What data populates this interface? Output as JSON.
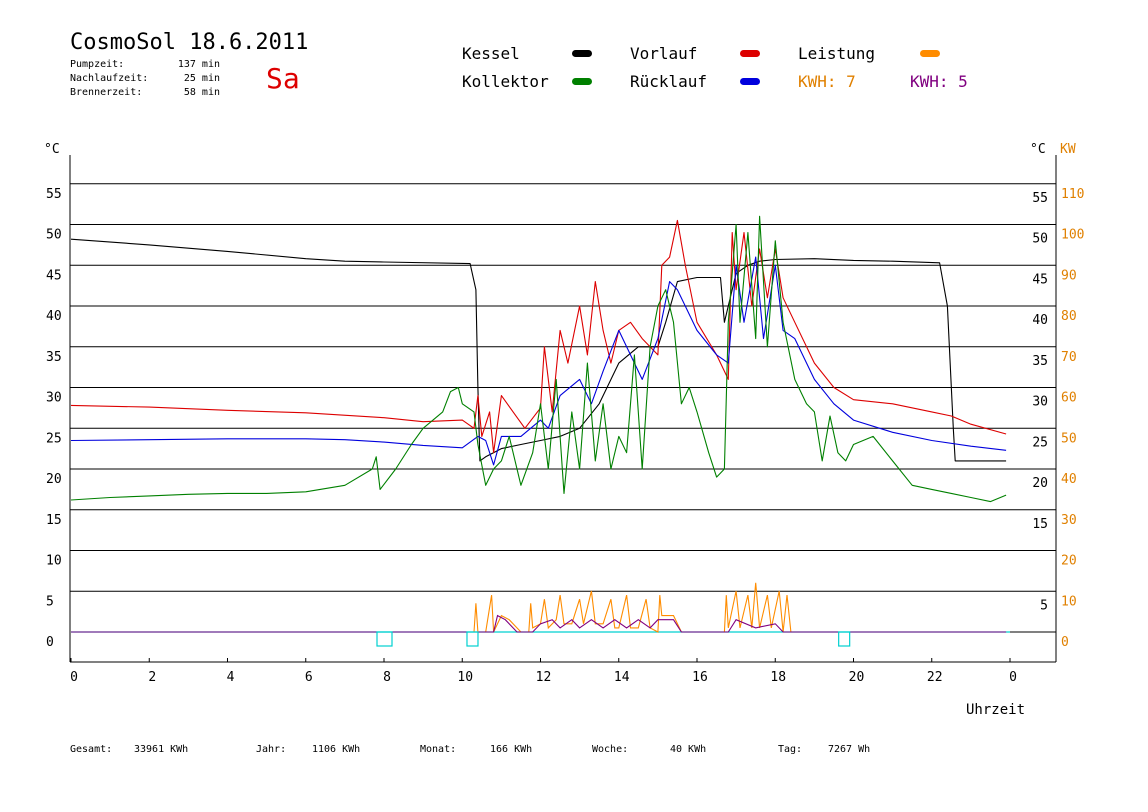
{
  "header": {
    "title": "CosmoSol 18.6.2011",
    "day": "Sa",
    "stats": [
      {
        "label": "Pumpzeit:",
        "value": "137 min"
      },
      {
        "label": "Nachlaufzeit:",
        "value": "25 min"
      },
      {
        "label": "Brennerzeit:",
        "value": "58 min"
      }
    ]
  },
  "legend": {
    "items": [
      {
        "label": "Kessel",
        "color": "#000000"
      },
      {
        "label": "Vorlauf",
        "color": "#dd0000"
      },
      {
        "label": "Leistung",
        "color": "#ff8c00"
      },
      {
        "label": "Kollektor",
        "color": "#008000"
      },
      {
        "label": "Rücklauf",
        "color": "#0000dd"
      }
    ],
    "kwh": [
      {
        "label": "KWH: 7",
        "color": "#e08000"
      },
      {
        "label": "KWH: 5",
        "color": "#800080"
      }
    ]
  },
  "footer": {
    "items": [
      {
        "label": "Gesamt:",
        "value": "33961 KWh"
      },
      {
        "label": "Jahr:",
        "value": "1106 KWh"
      },
      {
        "label": "Monat:",
        "value": "166 KWh"
      },
      {
        "label": "Woche:",
        "value": "40 KWh"
      },
      {
        "label": "Tag:",
        "value": "7267 Wh"
      }
    ]
  },
  "chart_data": {
    "type": "line",
    "xlabel": "Uhrzeit",
    "ylabel_left": "°C",
    "ylabel_right": [
      "°C",
      "KW"
    ],
    "x_ticks": [
      "0",
      "2",
      "4",
      "6",
      "8",
      "10",
      "12",
      "14",
      "16",
      "18",
      "20",
      "22",
      "0"
    ],
    "xlim": [
      0,
      24
    ],
    "ylim": [
      0,
      55
    ],
    "y_ticks_left": [
      0,
      5,
      10,
      15,
      20,
      25,
      30,
      35,
      40,
      45,
      50,
      55
    ],
    "y_ticks_right_c": [
      5,
      15,
      20,
      25,
      30,
      35,
      40,
      45,
      50,
      55
    ],
    "y_ticks_right_kw": [
      0,
      10,
      20,
      30,
      40,
      50,
      60,
      70,
      80,
      90,
      100,
      110
    ],
    "grid": true,
    "series": [
      {
        "name": "Kessel",
        "color": "#000000",
        "points": [
          [
            0,
            48.2
          ],
          [
            2,
            47.5
          ],
          [
            4,
            46.7
          ],
          [
            6,
            45.8
          ],
          [
            7,
            45.5
          ],
          [
            8,
            45.4
          ],
          [
            10.2,
            45.2
          ],
          [
            10.35,
            42
          ],
          [
            10.4,
            30
          ],
          [
            10.45,
            21
          ],
          [
            10.6,
            21.5
          ],
          [
            11,
            22.5
          ],
          [
            11.5,
            23
          ],
          [
            12,
            23.5
          ],
          [
            12.5,
            24
          ],
          [
            13,
            25
          ],
          [
            13.5,
            28
          ],
          [
            14,
            33
          ],
          [
            14.5,
            35
          ],
          [
            15,
            35
          ],
          [
            15.2,
            38
          ],
          [
            15.5,
            43
          ],
          [
            16,
            43.5
          ],
          [
            16.6,
            43.5
          ],
          [
            16.7,
            38
          ],
          [
            17,
            44
          ],
          [
            17.3,
            45
          ],
          [
            17.6,
            45.5
          ],
          [
            18,
            45.7
          ],
          [
            19,
            45.8
          ],
          [
            20,
            45.6
          ],
          [
            21,
            45.5
          ],
          [
            22.2,
            45.3
          ],
          [
            22.4,
            40
          ],
          [
            22.55,
            25
          ],
          [
            22.6,
            21
          ],
          [
            23.9,
            21
          ]
        ]
      },
      {
        "name": "Vorlauf",
        "color": "#dd0000",
        "points": [
          [
            0,
            27.8
          ],
          [
            2,
            27.6
          ],
          [
            4,
            27.2
          ],
          [
            6,
            26.9
          ],
          [
            8,
            26.3
          ],
          [
            9,
            25.8
          ],
          [
            10,
            26
          ],
          [
            10.3,
            25
          ],
          [
            10.4,
            29
          ],
          [
            10.5,
            24
          ],
          [
            10.7,
            27
          ],
          [
            10.8,
            22
          ],
          [
            11,
            29
          ],
          [
            11.3,
            27
          ],
          [
            11.6,
            25
          ],
          [
            12,
            27.5
          ],
          [
            12.1,
            35
          ],
          [
            12.3,
            27
          ],
          [
            12.5,
            37
          ],
          [
            12.7,
            33
          ],
          [
            13,
            40
          ],
          [
            13.2,
            34
          ],
          [
            13.4,
            43
          ],
          [
            13.6,
            37
          ],
          [
            13.8,
            33
          ],
          [
            14,
            37
          ],
          [
            14.3,
            38
          ],
          [
            14.6,
            36
          ],
          [
            15,
            34
          ],
          [
            15.1,
            45
          ],
          [
            15.3,
            46
          ],
          [
            15.5,
            50.5
          ],
          [
            15.7,
            45
          ],
          [
            16,
            38
          ],
          [
            16.5,
            34
          ],
          [
            16.8,
            31
          ],
          [
            16.9,
            49
          ],
          [
            17,
            42
          ],
          [
            17.2,
            49
          ],
          [
            17.4,
            40
          ],
          [
            17.6,
            47
          ],
          [
            17.8,
            41
          ],
          [
            18,
            47
          ],
          [
            18.2,
            41
          ],
          [
            18.5,
            38
          ],
          [
            19,
            33
          ],
          [
            19.5,
            30
          ],
          [
            20,
            28.5
          ],
          [
            21,
            28
          ],
          [
            22,
            27
          ],
          [
            22.5,
            26.5
          ],
          [
            23,
            25.5
          ],
          [
            23.9,
            24.3
          ]
        ]
      },
      {
        "name": "Rücklauf",
        "color": "#0000dd",
        "points": [
          [
            0,
            23.5
          ],
          [
            2,
            23.6
          ],
          [
            4,
            23.7
          ],
          [
            6,
            23.7
          ],
          [
            7,
            23.6
          ],
          [
            8,
            23.3
          ],
          [
            9,
            22.9
          ],
          [
            10,
            22.6
          ],
          [
            10.4,
            24
          ],
          [
            10.6,
            23.5
          ],
          [
            10.8,
            20.5
          ],
          [
            11,
            24
          ],
          [
            11.5,
            24
          ],
          [
            12,
            26
          ],
          [
            12.2,
            25
          ],
          [
            12.5,
            29
          ],
          [
            13,
            31
          ],
          [
            13.3,
            28
          ],
          [
            13.6,
            32
          ],
          [
            14,
            37
          ],
          [
            14.3,
            34
          ],
          [
            14.6,
            31
          ],
          [
            15,
            36
          ],
          [
            15.3,
            43
          ],
          [
            15.5,
            42
          ],
          [
            16,
            37
          ],
          [
            16.5,
            34
          ],
          [
            16.8,
            33
          ],
          [
            17,
            45
          ],
          [
            17.2,
            38
          ],
          [
            17.5,
            46
          ],
          [
            17.7,
            36
          ],
          [
            18,
            45
          ],
          [
            18.2,
            37
          ],
          [
            18.5,
            36
          ],
          [
            19,
            31
          ],
          [
            19.5,
            28
          ],
          [
            20,
            26
          ],
          [
            21,
            24.5
          ],
          [
            22,
            23.5
          ],
          [
            23,
            22.8
          ],
          [
            23.9,
            22.3
          ]
        ]
      },
      {
        "name": "Kollektor",
        "color": "#008000",
        "points": [
          [
            0,
            16.2
          ],
          [
            1,
            16.5
          ],
          [
            2,
            16.7
          ],
          [
            3,
            16.9
          ],
          [
            4,
            17
          ],
          [
            5,
            17
          ],
          [
            6,
            17.2
          ],
          [
            7,
            18
          ],
          [
            7.7,
            20
          ],
          [
            7.8,
            21.5
          ],
          [
            7.9,
            17.5
          ],
          [
            8.3,
            20
          ],
          [
            8.7,
            23
          ],
          [
            9,
            25
          ],
          [
            9.5,
            27
          ],
          [
            9.7,
            29.5
          ],
          [
            9.9,
            30
          ],
          [
            10,
            28
          ],
          [
            10.3,
            27
          ],
          [
            10.4,
            23
          ],
          [
            10.6,
            18
          ],
          [
            10.8,
            20
          ],
          [
            11,
            21
          ],
          [
            11.2,
            24
          ],
          [
            11.5,
            18
          ],
          [
            11.8,
            22
          ],
          [
            12,
            28
          ],
          [
            12.2,
            20
          ],
          [
            12.4,
            31
          ],
          [
            12.6,
            17
          ],
          [
            12.8,
            27
          ],
          [
            13,
            20
          ],
          [
            13.2,
            33
          ],
          [
            13.4,
            21
          ],
          [
            13.6,
            28
          ],
          [
            13.8,
            20
          ],
          [
            14,
            24
          ],
          [
            14.2,
            22
          ],
          [
            14.4,
            34
          ],
          [
            14.6,
            20
          ],
          [
            14.8,
            35
          ],
          [
            15,
            40
          ],
          [
            15.2,
            42
          ],
          [
            15.4,
            38
          ],
          [
            15.6,
            28
          ],
          [
            15.8,
            30
          ],
          [
            16,
            27
          ],
          [
            16.3,
            22
          ],
          [
            16.5,
            19
          ],
          [
            16.7,
            20
          ],
          [
            16.8,
            38
          ],
          [
            17,
            50
          ],
          [
            17.1,
            38
          ],
          [
            17.3,
            49
          ],
          [
            17.5,
            36
          ],
          [
            17.6,
            51
          ],
          [
            17.8,
            35
          ],
          [
            18,
            48
          ],
          [
            18.2,
            38
          ],
          [
            18.5,
            31
          ],
          [
            18.8,
            28
          ],
          [
            19,
            27
          ],
          [
            19.2,
            21
          ],
          [
            19.4,
            26.5
          ],
          [
            19.6,
            22
          ],
          [
            19.8,
            21
          ],
          [
            20,
            23
          ],
          [
            20.5,
            24
          ],
          [
            21,
            21
          ],
          [
            21.5,
            18
          ],
          [
            22,
            17.5
          ],
          [
            22.5,
            17
          ],
          [
            23,
            16.5
          ],
          [
            23.5,
            16
          ],
          [
            23.9,
            16.8
          ]
        ]
      }
    ],
    "power_series": [
      {
        "name": "Leistung",
        "color": "#ff8c00",
        "points": [
          [
            0,
            0
          ],
          [
            10.3,
            0
          ],
          [
            10.35,
            7
          ],
          [
            10.4,
            0
          ],
          [
            10.6,
            0
          ],
          [
            10.75,
            9
          ],
          [
            10.8,
            0
          ],
          [
            11,
            4
          ],
          [
            11.2,
            3
          ],
          [
            11.5,
            0
          ],
          [
            11.7,
            0
          ],
          [
            11.75,
            7
          ],
          [
            11.8,
            1
          ],
          [
            12,
            2
          ],
          [
            12.1,
            8
          ],
          [
            12.2,
            1
          ],
          [
            12.4,
            3
          ],
          [
            12.5,
            9
          ],
          [
            12.6,
            2
          ],
          [
            12.8,
            2
          ],
          [
            13,
            8
          ],
          [
            13.1,
            2
          ],
          [
            13.3,
            10
          ],
          [
            13.4,
            2
          ],
          [
            13.6,
            2
          ],
          [
            13.8,
            8
          ],
          [
            13.9,
            1
          ],
          [
            14,
            1
          ],
          [
            14.2,
            9
          ],
          [
            14.3,
            1
          ],
          [
            14.5,
            1
          ],
          [
            14.7,
            8
          ],
          [
            14.8,
            1
          ],
          [
            15,
            0
          ],
          [
            15.05,
            9
          ],
          [
            15.1,
            4
          ],
          [
            15.4,
            4
          ],
          [
            15.6,
            0
          ],
          [
            16.7,
            0
          ],
          [
            16.75,
            9
          ],
          [
            16.8,
            1
          ],
          [
            17,
            10
          ],
          [
            17.1,
            1
          ],
          [
            17.3,
            9
          ],
          [
            17.4,
            1
          ],
          [
            17.5,
            12
          ],
          [
            17.6,
            1
          ],
          [
            17.8,
            9
          ],
          [
            17.9,
            1
          ],
          [
            18.1,
            10
          ],
          [
            18.2,
            0
          ],
          [
            18.3,
            9
          ],
          [
            18.4,
            0
          ],
          [
            23.9,
            0
          ]
        ]
      },
      {
        "name": "KWH-5",
        "color": "#800080",
        "points": [
          [
            0,
            0
          ],
          [
            10.8,
            0
          ],
          [
            10.9,
            4
          ],
          [
            11.1,
            3
          ],
          [
            11.4,
            0
          ],
          [
            11.8,
            0
          ],
          [
            12,
            2
          ],
          [
            12.3,
            3
          ],
          [
            12.5,
            1
          ],
          [
            12.8,
            3
          ],
          [
            13,
            1
          ],
          [
            13.3,
            3
          ],
          [
            13.6,
            1
          ],
          [
            13.9,
            3
          ],
          [
            14.2,
            1
          ],
          [
            14.5,
            3
          ],
          [
            14.8,
            1
          ],
          [
            15,
            3
          ],
          [
            15.4,
            3
          ],
          [
            15.6,
            0
          ],
          [
            16.8,
            0
          ],
          [
            17,
            3
          ],
          [
            17.5,
            1
          ],
          [
            18,
            2
          ],
          [
            18.2,
            0
          ],
          [
            23.9,
            0
          ]
        ]
      }
    ]
  }
}
